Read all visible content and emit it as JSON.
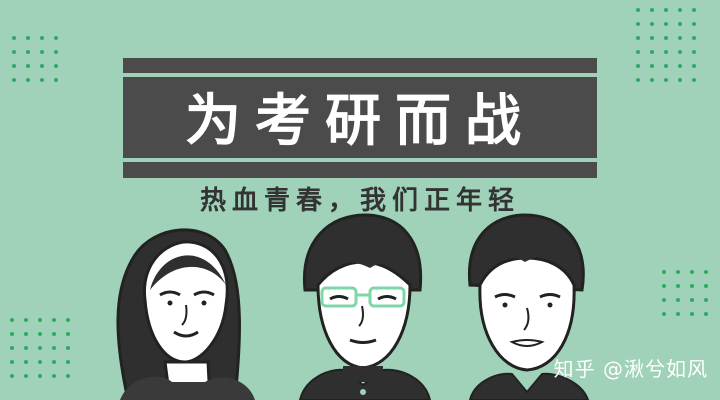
{
  "banner": {
    "title": "为考研而战",
    "subtitle": "热血青春，我们正年轻"
  },
  "watermark": {
    "text": "知乎 @湫兮如风"
  },
  "illustration": {
    "figures": [
      "woman-with-long-hair",
      "young-man-with-glasses",
      "young-man"
    ]
  },
  "colors": {
    "background": "#9fd2b8",
    "banner": "#4b4b4b",
    "dots": "#2eaa62",
    "ink": "#333333"
  }
}
